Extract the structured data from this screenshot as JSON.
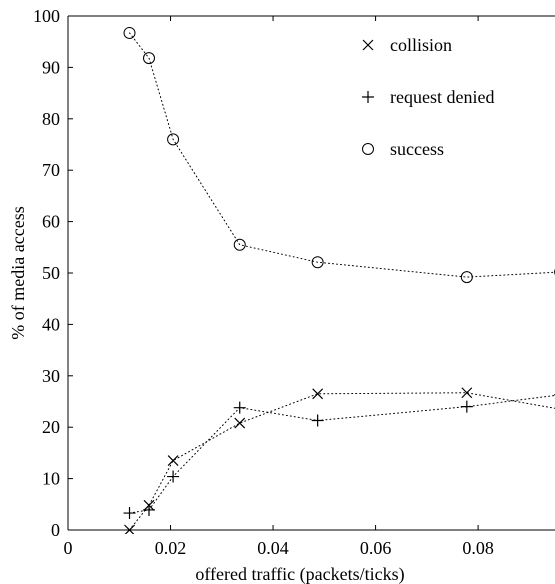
{
  "chart_data": {
    "type": "scatter",
    "title": "",
    "xlabel": "offered traffic (packets/ticks)",
    "ylabel": "% of media access",
    "xlim": [
      0,
      0.095
    ],
    "ylim": [
      0,
      100
    ],
    "xticks": [
      0,
      0.02,
      0.04,
      0.06,
      0.08
    ],
    "xtick_labels": [
      "0",
      "0.02",
      "0.04",
      "0.06",
      "0.08"
    ],
    "yticks": [
      0,
      10,
      20,
      30,
      40,
      50,
      60,
      70,
      80,
      90,
      100
    ],
    "ytick_labels": [
      "0",
      "10",
      "20",
      "30",
      "40",
      "50",
      "60",
      "70",
      "80",
      "90",
      "100"
    ],
    "grid": false,
    "legend_position": "top-right",
    "line_style": "dotted",
    "series": [
      {
        "name": "collision",
        "marker": "x",
        "x": [
          0.012,
          0.0158,
          0.0205,
          0.0335,
          0.0487,
          0.0778,
          0.096
        ],
        "y": [
          0,
          4.8,
          13.5,
          20.8,
          26.5,
          26.7,
          23.5
        ]
      },
      {
        "name": "request denied",
        "marker": "+",
        "x": [
          0.012,
          0.0158,
          0.0205,
          0.0335,
          0.0487,
          0.0778,
          0.096
        ],
        "y": [
          3.3,
          3.9,
          10.4,
          23.8,
          21.3,
          24.0,
          26.3
        ]
      },
      {
        "name": "success",
        "marker": "o",
        "x": [
          0.012,
          0.0158,
          0.0205,
          0.0335,
          0.0487,
          0.0778,
          0.096
        ],
        "y": [
          96.7,
          91.8,
          76.0,
          55.5,
          52.1,
          49.2,
          50.2
        ]
      }
    ]
  }
}
